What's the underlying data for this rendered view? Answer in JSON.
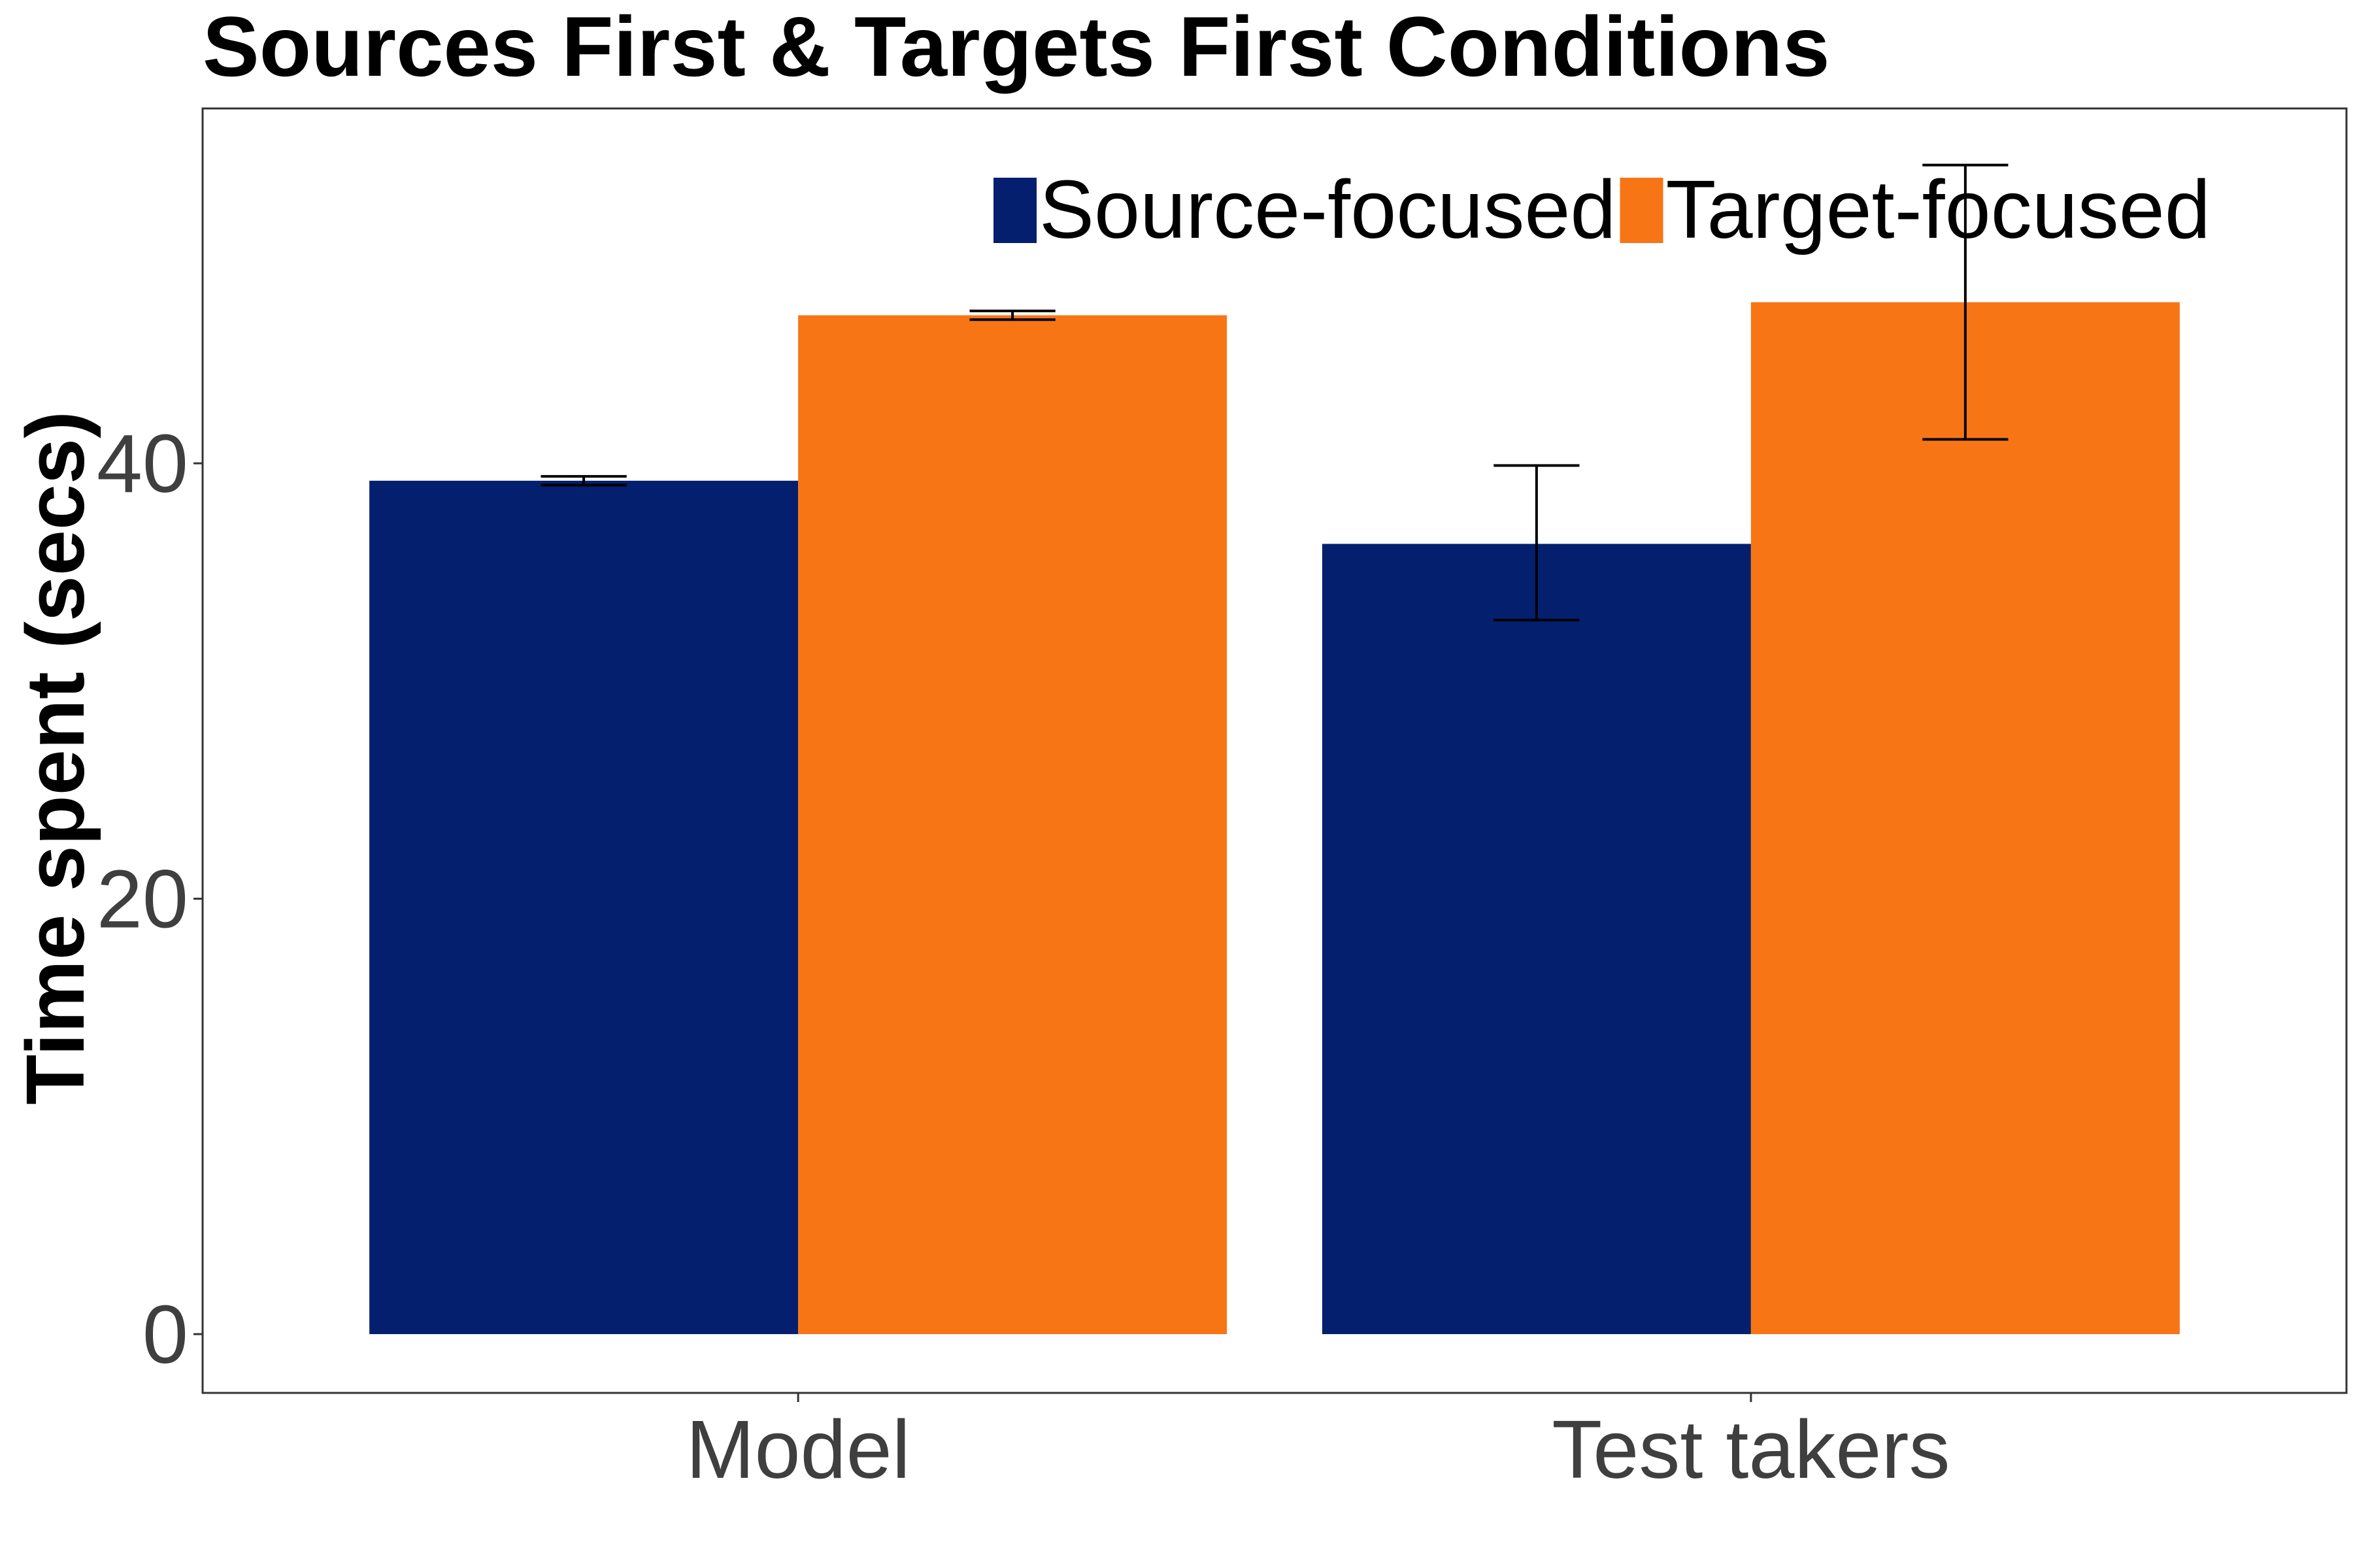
{
  "chart_data": {
    "type": "bar",
    "title": "Sources First & Targets First Conditions",
    "xlabel": "",
    "ylabel": "Time spent (secs)",
    "categories": [
      "Model",
      "Test takers"
    ],
    "series": [
      {
        "name": "Source-focused",
        "color": "#031f6e",
        "values": [
          39.2,
          36.3
        ],
        "error_low": [
          39.0,
          32.8
        ],
        "error_high": [
          39.4,
          39.9
        ]
      },
      {
        "name": "Target-focused",
        "color": "#f87515",
        "values": [
          46.8,
          47.4
        ],
        "error_low": [
          46.6,
          41.1
        ],
        "error_high": [
          47.0,
          53.7
        ]
      }
    ],
    "ylim": [
      -2.7,
      56.3
    ],
    "yticks": [
      0,
      20,
      40
    ],
    "ytick_labels": [
      "0",
      "20",
      "40"
    ],
    "grid": false,
    "legend_position": "top-right",
    "legend_direction": "horizontal"
  }
}
